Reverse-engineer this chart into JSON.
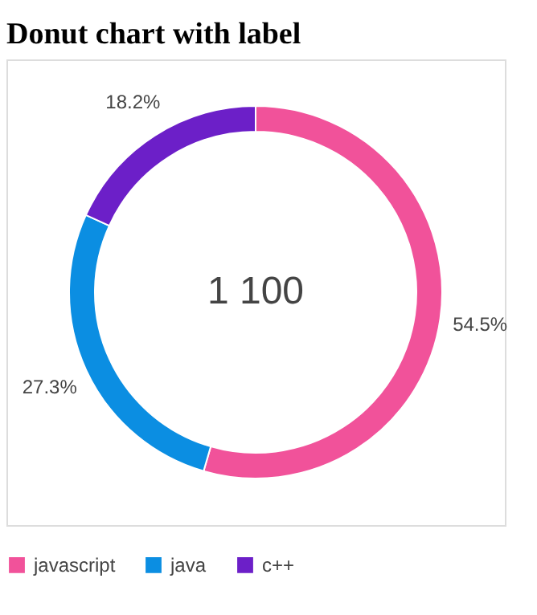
{
  "chart_data": {
    "type": "donut",
    "title": "Donut chart with label",
    "categories": [
      "javascript",
      "java",
      "c++"
    ],
    "values": [
      54.5,
      27.3,
      18.2
    ],
    "colors": [
      "#f1529a",
      "#0b8ee2",
      "#6c1fc8"
    ],
    "value_labels": [
      "54.5%",
      "27.3%",
      "18.2%"
    ],
    "annotations": [
      "1 100"
    ],
    "legend": "bottom"
  }
}
